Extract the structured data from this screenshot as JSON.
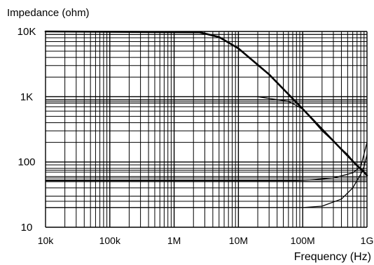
{
  "chart_data": {
    "type": "line",
    "title_fragment": "",
    "xlabel": "Frequency (Hz)",
    "ylabel": "Impedance (ohm)",
    "x_scale": "log",
    "y_scale": "log",
    "xlim": [
      10000,
      1000000000
    ],
    "ylim": [
      10,
      10000
    ],
    "grid": true,
    "xticks": [
      {
        "value": 10000,
        "label": "10k"
      },
      {
        "value": 100000,
        "label": "100k"
      },
      {
        "value": 1000000,
        "label": "1M"
      },
      {
        "value": 10000000,
        "label": "10M"
      },
      {
        "value": 100000000,
        "label": "100M"
      },
      {
        "value": 1000000000,
        "label": "1G"
      }
    ],
    "yticks": [
      {
        "value": 10,
        "label": "10"
      },
      {
        "value": 100,
        "label": "100"
      },
      {
        "value": 1000,
        "label": "1K"
      },
      {
        "value": 10000,
        "label": "10K"
      }
    ],
    "extra_hlines": [
      20,
      25,
      50,
      53,
      57,
      75,
      800,
      850,
      900,
      9000
    ],
    "series": [
      {
        "style": "bold",
        "points": [
          [
            10000,
            10000
          ],
          [
            2500000,
            9700
          ],
          [
            5000000,
            8200
          ],
          [
            10000000,
            5500
          ],
          [
            30000000,
            2200
          ],
          [
            100000000,
            650
          ],
          [
            300000000,
            210
          ],
          [
            700000000,
            88
          ],
          [
            900000000,
            70
          ],
          [
            1000000000,
            62
          ]
        ]
      },
      {
        "style": "thin",
        "points": [
          [
            20000000,
            1000
          ],
          [
            60000000,
            850
          ],
          [
            100000000,
            650
          ],
          [
            200000000,
            300
          ],
          [
            500000000,
            130
          ],
          [
            700000000,
            88
          ]
        ]
      },
      {
        "style": "thin",
        "points": [
          [
            10000,
            52
          ],
          [
            80000000,
            52
          ],
          [
            130000000,
            53
          ],
          [
            300000000,
            57
          ],
          [
            600000000,
            68
          ],
          [
            800000000,
            85
          ],
          [
            1000000000,
            200
          ]
        ]
      },
      {
        "style": "thin",
        "points": [
          [
            10000,
            20
          ],
          [
            100000000,
            20
          ],
          [
            200000000,
            21
          ],
          [
            400000000,
            27
          ],
          [
            600000000,
            40
          ],
          [
            800000000,
            65
          ],
          [
            900000000,
            85
          ],
          [
            1000000000,
            130
          ]
        ]
      }
    ]
  }
}
